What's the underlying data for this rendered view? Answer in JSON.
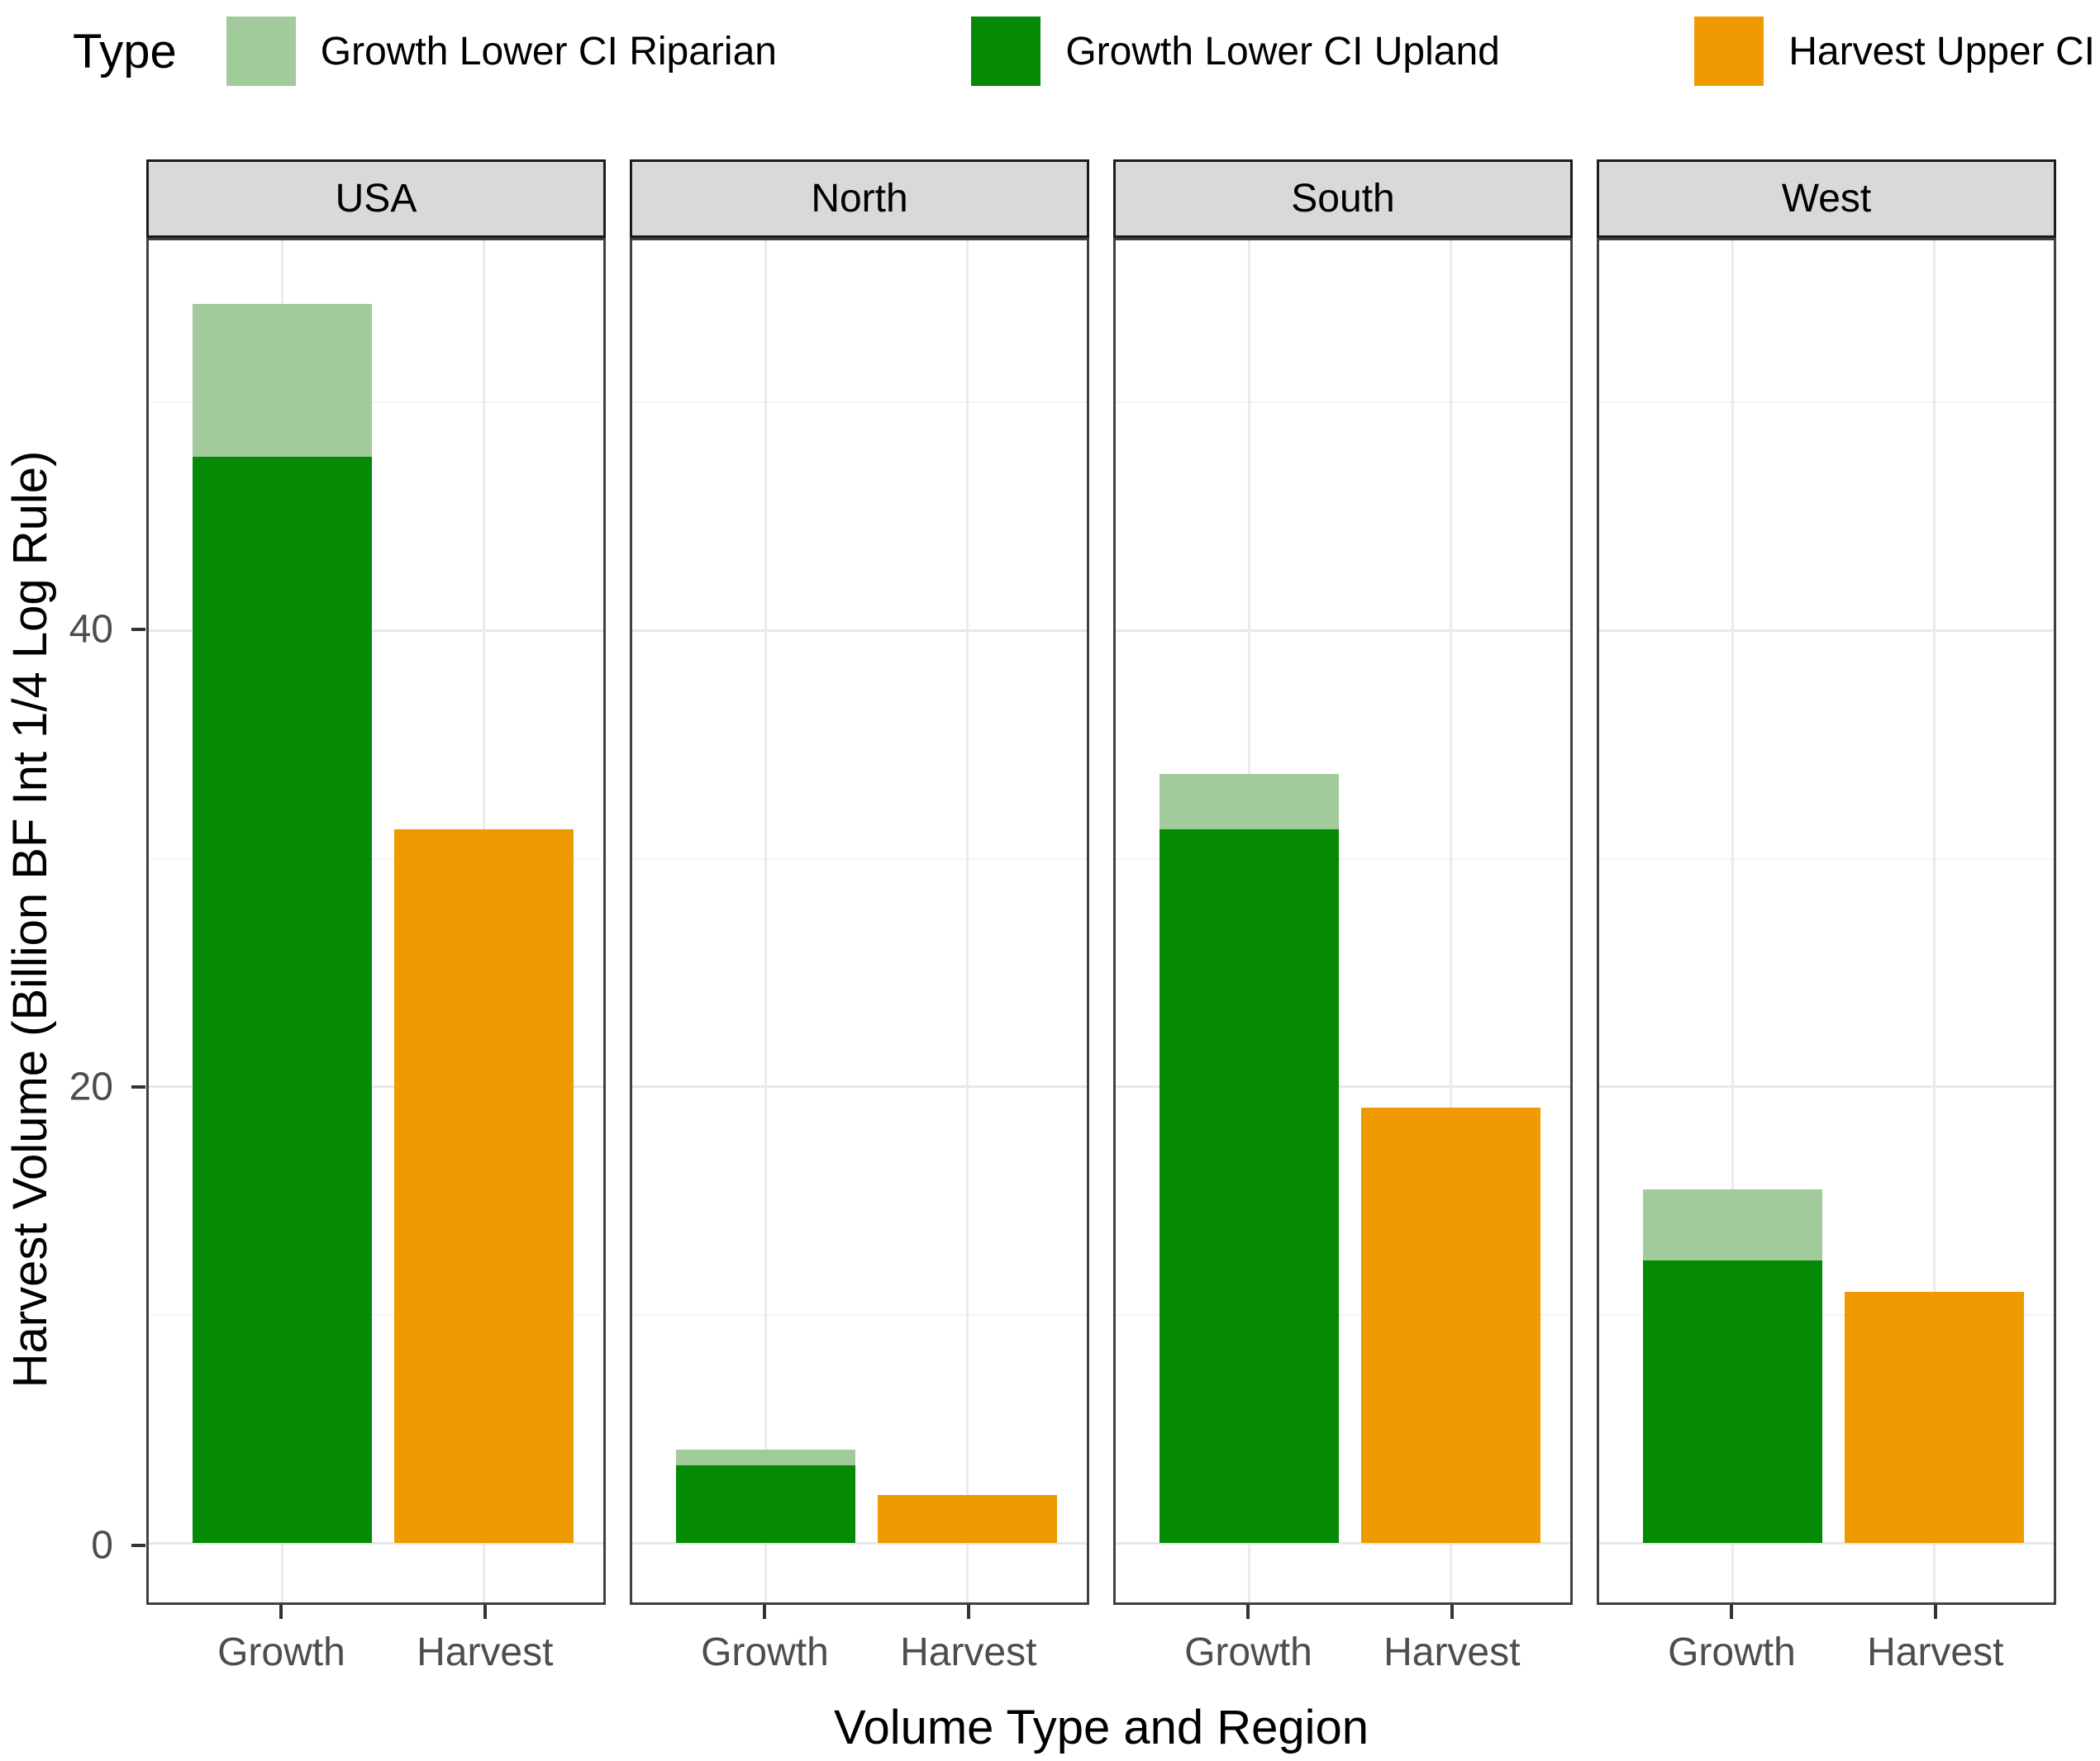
{
  "legend": {
    "title": "Type",
    "items": [
      {
        "label": "Growth Lower CI Riparian",
        "color": "#a2cb9b"
      },
      {
        "label": "Growth Lower CI Upland",
        "color": "#048a04"
      },
      {
        "label": "Harvest Upper CI",
        "color": "#ee9a00"
      }
    ]
  },
  "axes": {
    "y_title": "Harvest Volume (Billion BF Int 1/4 Log Rule)",
    "x_title": "Volume Type and Region",
    "y_ticks": [
      0,
      20,
      40
    ],
    "x_categories": [
      "Growth",
      "Harvest"
    ]
  },
  "chart_data": {
    "type": "bar",
    "subtype": "stacked-faceted",
    "title": "",
    "facets": [
      "USA",
      "North",
      "South",
      "West"
    ],
    "categories": [
      "Growth",
      "Harvest"
    ],
    "series": [
      {
        "name": "Growth Lower CI Upland",
        "category": "Growth",
        "stack_level": "bottom",
        "color": "#048a04",
        "values": {
          "USA": 47.6,
          "North": 3.4,
          "South": 31.3,
          "West": 12.4
        }
      },
      {
        "name": "Growth Lower CI Riparian",
        "category": "Growth",
        "stack_level": "top",
        "color": "#a2cb9b",
        "values": {
          "USA": 6.7,
          "North": 0.7,
          "South": 2.4,
          "West": 3.1
        }
      },
      {
        "name": "Harvest Upper CI",
        "category": "Harvest",
        "stack_level": "single",
        "color": "#ee9a00",
        "values": {
          "USA": 31.3,
          "North": 2.1,
          "South": 19.1,
          "West": 11.0
        }
      }
    ],
    "ylabel": "Harvest Volume (Billion BF Int 1/4 Log Rule)",
    "xlabel": "Volume Type and Region",
    "ylim": [
      -2.6,
      57.1
    ],
    "yticks_major": [
      0,
      20,
      40
    ],
    "yticks_minor": [
      10,
      30,
      50
    ],
    "grid": true,
    "legend_position": "top",
    "style": {
      "strip_fill": "#d9d9d9",
      "strip_border": "#1c1c1c",
      "panel_border": "#404040",
      "grid_major_color": "#e7e7e7",
      "grid_minor_color": "#f4f4f4",
      "tick_label_color": "#4d4d4d"
    }
  }
}
